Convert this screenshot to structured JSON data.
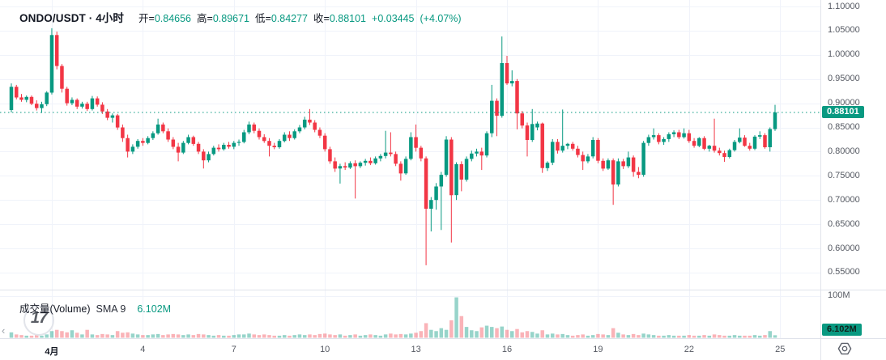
{
  "header": {
    "symbol_title": "ONDO/USDT · 4小时",
    "o_label": "开=",
    "open": "0.84656",
    "h_label": "高=",
    "high": "0.89671",
    "l_label": "低=",
    "low": "0.84277",
    "c_label": "收=",
    "close": "0.88101",
    "change": "+0.03445",
    "change_pct": "(+4.07%)"
  },
  "volume_legend": {
    "title": "成交量(Volume)",
    "sma_label": "SMA 9",
    "value": "6.102M"
  },
  "watermark": {
    "text": "17"
  },
  "scroll_hint": "‹",
  "price_scale": {
    "last_price_label": "0.88101",
    "ticks": [
      {
        "label": "1.10000",
        "price": 1.1
      },
      {
        "label": "1.05000",
        "price": 1.05
      },
      {
        "label": "1.00000",
        "price": 1.0
      },
      {
        "label": "0.95000",
        "price": 0.95
      },
      {
        "label": "0.90000",
        "price": 0.9
      },
      {
        "label": "0.85000",
        "price": 0.85
      },
      {
        "label": "0.80000",
        "price": 0.8
      },
      {
        "label": "0.75000",
        "price": 0.75
      },
      {
        "label": "0.70000",
        "price": 0.7
      },
      {
        "label": "0.65000",
        "price": 0.65
      },
      {
        "label": "0.60000",
        "price": 0.6
      },
      {
        "label": "0.55000",
        "price": 0.55
      }
    ]
  },
  "volume_scale": {
    "tick": "100M",
    "tick_value": 100,
    "last_value_label": "6.102M"
  },
  "time_scale": {
    "ticks": [
      {
        "label": "4月",
        "index": 8,
        "bold": true
      },
      {
        "label": "4",
        "index": 26,
        "bold": false
      },
      {
        "label": "7",
        "index": 44,
        "bold": false
      },
      {
        "label": "10",
        "index": 62,
        "bold": false
      },
      {
        "label": "13",
        "index": 80,
        "bold": false
      },
      {
        "label": "16",
        "index": 98,
        "bold": false
      },
      {
        "label": "19",
        "index": 116,
        "bold": false
      },
      {
        "label": "22",
        "index": 134,
        "bold": false
      },
      {
        "label": "25",
        "index": 152,
        "bold": false
      }
    ]
  },
  "colors": {
    "up": "#089981",
    "down": "#f23645",
    "volume_up": "rgba(8,153,129,0.42)",
    "volume_down": "rgba(242,54,69,0.38)",
    "grid": "#f0f3fa",
    "pane_border": "#e0e3eb",
    "axis_text": "#555962",
    "text": "#131722",
    "last_price_line": "#089981",
    "badge_bg": "#089981"
  },
  "chart_data": {
    "type": "candlestick_with_volume",
    "title": "ONDO/USDT · 4小时",
    "interval": "4小时",
    "last_price": 0.88101,
    "change": 0.03445,
    "change_pct": 4.07,
    "price_axis": {
      "min": 0.55,
      "max": 1.1,
      "step": 0.05
    },
    "volume_axis": {
      "max_tick": 100,
      "unit": "M"
    },
    "last_volume": 6.102,
    "legend_note": "candles = [open, high, low, close, volume_in_millions]",
    "candles": [
      [
        0.886,
        0.941,
        0.881,
        0.934,
        13
      ],
      [
        0.934,
        0.938,
        0.908,
        0.912,
        8
      ],
      [
        0.912,
        0.919,
        0.903,
        0.907,
        6.5
      ],
      [
        0.907,
        0.916,
        0.902,
        0.913,
        5
      ],
      [
        0.913,
        0.916,
        0.896,
        0.899,
        5
      ],
      [
        0.899,
        0.906,
        0.885,
        0.89,
        6.5
      ],
      [
        0.89,
        0.903,
        0.88,
        0.898,
        5
      ],
      [
        0.898,
        0.925,
        0.894,
        0.922,
        8
      ],
      [
        0.922,
        1.055,
        0.918,
        1.041,
        16
      ],
      [
        1.041,
        1.048,
        0.97,
        0.977,
        19
      ],
      [
        0.977,
        0.981,
        0.922,
        0.93,
        16
      ],
      [
        0.93,
        0.934,
        0.895,
        0.9,
        13
      ],
      [
        0.9,
        0.912,
        0.896,
        0.907,
        18
      ],
      [
        0.907,
        0.91,
        0.888,
        0.893,
        12
      ],
      [
        0.893,
        0.903,
        0.889,
        0.899,
        8
      ],
      [
        0.899,
        0.903,
        0.884,
        0.888,
        19
      ],
      [
        0.888,
        0.915,
        0.885,
        0.91,
        8
      ],
      [
        0.91,
        0.914,
        0.893,
        0.897,
        6.5
      ],
      [
        0.897,
        0.902,
        0.878,
        0.883,
        9
      ],
      [
        0.883,
        0.888,
        0.865,
        0.87,
        8
      ],
      [
        0.87,
        0.879,
        0.86,
        0.875,
        6.5
      ],
      [
        0.875,
        0.878,
        0.845,
        0.85,
        16
      ],
      [
        0.85,
        0.856,
        0.82,
        0.828,
        12
      ],
      [
        0.828,
        0.835,
        0.788,
        0.8,
        13
      ],
      [
        0.8,
        0.815,
        0.795,
        0.81,
        10
      ],
      [
        0.81,
        0.826,
        0.806,
        0.822,
        8
      ],
      [
        0.822,
        0.828,
        0.812,
        0.818,
        6.5
      ],
      [
        0.818,
        0.832,
        0.815,
        0.828,
        6.5
      ],
      [
        0.828,
        0.842,
        0.824,
        0.838,
        8
      ],
      [
        0.838,
        0.868,
        0.835,
        0.856,
        9
      ],
      [
        0.856,
        0.86,
        0.838,
        0.842,
        6.5
      ],
      [
        0.842,
        0.848,
        0.82,
        0.825,
        8
      ],
      [
        0.825,
        0.83,
        0.805,
        0.81,
        9
      ],
      [
        0.81,
        0.818,
        0.78,
        0.798,
        8
      ],
      [
        0.798,
        0.822,
        0.795,
        0.818,
        6.5
      ],
      [
        0.818,
        0.835,
        0.815,
        0.83,
        8
      ],
      [
        0.83,
        0.833,
        0.812,
        0.816,
        6.5
      ],
      [
        0.816,
        0.82,
        0.795,
        0.8,
        9
      ],
      [
        0.8,
        0.805,
        0.765,
        0.782,
        8
      ],
      [
        0.782,
        0.8,
        0.778,
        0.795,
        6.5
      ],
      [
        0.795,
        0.812,
        0.792,
        0.808,
        5
      ],
      [
        0.808,
        0.815,
        0.8,
        0.805,
        6.5
      ],
      [
        0.805,
        0.818,
        0.802,
        0.814,
        5
      ],
      [
        0.814,
        0.82,
        0.806,
        0.81,
        5
      ],
      [
        0.81,
        0.822,
        0.805,
        0.818,
        6.5
      ],
      [
        0.818,
        0.825,
        0.812,
        0.82,
        8
      ],
      [
        0.82,
        0.845,
        0.817,
        0.84,
        8
      ],
      [
        0.84,
        0.862,
        0.836,
        0.856,
        10
      ],
      [
        0.856,
        0.86,
        0.838,
        0.843,
        8
      ],
      [
        0.843,
        0.848,
        0.825,
        0.83,
        6.5
      ],
      [
        0.83,
        0.836,
        0.818,
        0.822,
        8
      ],
      [
        0.822,
        0.828,
        0.79,
        0.812,
        6.5
      ],
      [
        0.812,
        0.818,
        0.805,
        0.809,
        5
      ],
      [
        0.809,
        0.826,
        0.806,
        0.822,
        5
      ],
      [
        0.822,
        0.84,
        0.819,
        0.835,
        6.5
      ],
      [
        0.835,
        0.842,
        0.822,
        0.828,
        5
      ],
      [
        0.828,
        0.846,
        0.825,
        0.842,
        6.5
      ],
      [
        0.842,
        0.855,
        0.838,
        0.85,
        8
      ],
      [
        0.85,
        0.872,
        0.846,
        0.866,
        6.5
      ],
      [
        0.866,
        0.888,
        0.855,
        0.86,
        8
      ],
      [
        0.86,
        0.865,
        0.84,
        0.845,
        6.5
      ],
      [
        0.845,
        0.85,
        0.828,
        0.833,
        9
      ],
      [
        0.833,
        0.838,
        0.8,
        0.805,
        10
      ],
      [
        0.805,
        0.81,
        0.775,
        0.78,
        8
      ],
      [
        0.78,
        0.788,
        0.758,
        0.765,
        6.5
      ],
      [
        0.765,
        0.775,
        0.734,
        0.77,
        8
      ],
      [
        0.77,
        0.778,
        0.762,
        0.767,
        5
      ],
      [
        0.767,
        0.78,
        0.764,
        0.776,
        6.5
      ],
      [
        0.776,
        0.782,
        0.703,
        0.77,
        8
      ],
      [
        0.77,
        0.78,
        0.766,
        0.777,
        5
      ],
      [
        0.777,
        0.785,
        0.771,
        0.781,
        6.5
      ],
      [
        0.781,
        0.788,
        0.772,
        0.776,
        8
      ],
      [
        0.776,
        0.79,
        0.773,
        0.786,
        6.5
      ],
      [
        0.786,
        0.795,
        0.78,
        0.791,
        5
      ],
      [
        0.791,
        0.843,
        0.786,
        0.798,
        8
      ],
      [
        0.798,
        0.84,
        0.79,
        0.795,
        10
      ],
      [
        0.795,
        0.8,
        0.77,
        0.775,
        8
      ],
      [
        0.775,
        0.78,
        0.74,
        0.755,
        9
      ],
      [
        0.755,
        0.79,
        0.752,
        0.785,
        8
      ],
      [
        0.785,
        0.84,
        0.782,
        0.83,
        10
      ],
      [
        0.83,
        0.856,
        0.8,
        0.808,
        12
      ],
      [
        0.808,
        0.812,
        0.78,
        0.786,
        16
      ],
      [
        0.786,
        0.79,
        0.565,
        0.682,
        35
      ],
      [
        0.682,
        0.706,
        0.635,
        0.7,
        19
      ],
      [
        0.7,
        0.735,
        0.68,
        0.728,
        16
      ],
      [
        0.728,
        0.758,
        0.638,
        0.752,
        23
      ],
      [
        0.752,
        0.832,
        0.748,
        0.825,
        19
      ],
      [
        0.825,
        0.83,
        0.612,
        0.71,
        42
      ],
      [
        0.71,
        0.778,
        0.7,
        0.774,
        97
      ],
      [
        0.774,
        0.78,
        0.718,
        0.742,
        52
      ],
      [
        0.742,
        0.79,
        0.738,
        0.785,
        26
      ],
      [
        0.785,
        0.802,
        0.78,
        0.796,
        18
      ],
      [
        0.796,
        0.806,
        0.79,
        0.8,
        16
      ],
      [
        0.8,
        0.808,
        0.762,
        0.792,
        25
      ],
      [
        0.792,
        0.842,
        0.788,
        0.838,
        29
      ],
      [
        0.838,
        0.938,
        0.83,
        0.905,
        26
      ],
      [
        0.905,
        0.91,
        0.832,
        0.874,
        23
      ],
      [
        0.874,
        1.038,
        0.87,
        0.983,
        27
      ],
      [
        0.983,
        0.998,
        0.938,
        0.941,
        19
      ],
      [
        0.941,
        0.968,
        0.935,
        0.946,
        16
      ],
      [
        0.946,
        0.95,
        0.846,
        0.879,
        21
      ],
      [
        0.879,
        0.884,
        0.848,
        0.854,
        13
      ],
      [
        0.854,
        0.86,
        0.79,
        0.824,
        16
      ],
      [
        0.824,
        0.888,
        0.82,
        0.857,
        14
      ],
      [
        0.85,
        0.862,
        0.844,
        0.858,
        10
      ],
      [
        0.858,
        0.86,
        0.756,
        0.766,
        18
      ],
      [
        0.766,
        0.78,
        0.76,
        0.777,
        8
      ],
      [
        0.777,
        0.826,
        0.772,
        0.82,
        10
      ],
      [
        0.82,
        0.826,
        0.796,
        0.802,
        8
      ],
      [
        0.802,
        0.887,
        0.798,
        0.812,
        9
      ],
      [
        0.812,
        0.818,
        0.805,
        0.816,
        6.5
      ],
      [
        0.816,
        0.82,
        0.802,
        0.806,
        5
      ],
      [
        0.806,
        0.812,
        0.788,
        0.793,
        6.5
      ],
      [
        0.793,
        0.8,
        0.762,
        0.78,
        8
      ],
      [
        0.78,
        0.795,
        0.776,
        0.79,
        5
      ],
      [
        0.79,
        0.83,
        0.786,
        0.824,
        6.5
      ],
      [
        0.824,
        0.828,
        0.776,
        0.781,
        9
      ],
      [
        0.781,
        0.786,
        0.76,
        0.765,
        8
      ],
      [
        0.765,
        0.786,
        0.762,
        0.782,
        6.5
      ],
      [
        0.782,
        0.786,
        0.69,
        0.732,
        23
      ],
      [
        0.732,
        0.786,
        0.728,
        0.78,
        12
      ],
      [
        0.78,
        0.785,
        0.764,
        0.77,
        8
      ],
      [
        0.77,
        0.8,
        0.766,
        0.788,
        6.5
      ],
      [
        0.788,
        0.792,
        0.748,
        0.758,
        9
      ],
      [
        0.758,
        0.768,
        0.745,
        0.752,
        6.5
      ],
      [
        0.752,
        0.822,
        0.748,
        0.818,
        10
      ],
      [
        0.818,
        0.835,
        0.812,
        0.83,
        8
      ],
      [
        0.83,
        0.848,
        0.825,
        0.834,
        6.5
      ],
      [
        0.834,
        0.838,
        0.815,
        0.82,
        5
      ],
      [
        0.82,
        0.83,
        0.814,
        0.826,
        5
      ],
      [
        0.826,
        0.84,
        0.82,
        0.836,
        6.5
      ],
      [
        0.836,
        0.844,
        0.83,
        0.84,
        5
      ],
      [
        0.84,
        0.845,
        0.826,
        0.83,
        5
      ],
      [
        0.83,
        0.848,
        0.827,
        0.838,
        5
      ],
      [
        0.838,
        0.845,
        0.818,
        0.822,
        6.5
      ],
      [
        0.822,
        0.828,
        0.808,
        0.812,
        5
      ],
      [
        0.812,
        0.83,
        0.809,
        0.828,
        5
      ],
      [
        0.828,
        0.832,
        0.803,
        0.806,
        6.5
      ],
      [
        0.806,
        0.814,
        0.8,
        0.812,
        5
      ],
      [
        0.812,
        0.868,
        0.798,
        0.802,
        8
      ],
      [
        0.802,
        0.808,
        0.792,
        0.797,
        6.5
      ],
      [
        0.797,
        0.802,
        0.779,
        0.789,
        5
      ],
      [
        0.789,
        0.806,
        0.786,
        0.803,
        5
      ],
      [
        0.803,
        0.824,
        0.8,
        0.82,
        6.5
      ],
      [
        0.82,
        0.848,
        0.817,
        0.829,
        5
      ],
      [
        0.829,
        0.834,
        0.81,
        0.812,
        5
      ],
      [
        0.812,
        0.818,
        0.802,
        0.806,
        5
      ],
      [
        0.806,
        0.834,
        0.803,
        0.831,
        6.5
      ],
      [
        0.831,
        0.842,
        0.826,
        0.834,
        5
      ],
      [
        0.834,
        0.838,
        0.806,
        0.809,
        6.5
      ],
      [
        0.809,
        0.85,
        0.8,
        0.8466,
        16
      ],
      [
        0.84656,
        0.89671,
        0.84277,
        0.88101,
        6.102
      ]
    ]
  }
}
